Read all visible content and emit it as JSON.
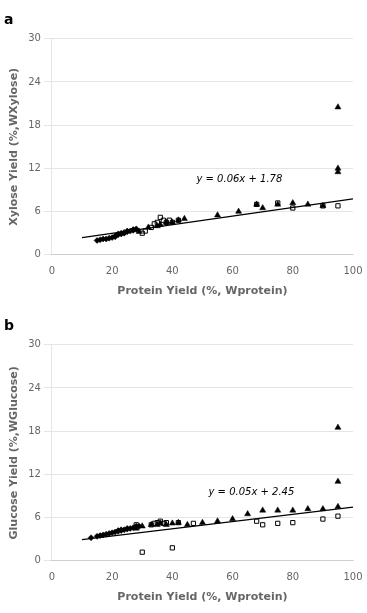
{
  "chart_data": [
    {
      "type": "scatter",
      "title": "a",
      "xlabel": "Protein Yield (%, Wprotein)",
      "ylabel": "Xylose Yield (%,WXylose)",
      "xlim": [
        0,
        100
      ],
      "ylim": [
        0,
        30
      ],
      "xticks": [
        0,
        20,
        40,
        60,
        80,
        100
      ],
      "yticks": [
        0,
        6,
        12,
        18,
        24,
        30
      ],
      "grid": "y",
      "annotations": [
        {
          "text": "y = 0.06x + 1.78",
          "x": 48,
          "y": 10.5
        }
      ],
      "series": [
        {
          "type": "line",
          "color": "#000000",
          "line_style": "solid",
          "x": [
            10,
            100
          ],
          "values": [
            2.38,
            7.78
          ]
        },
        {
          "type": "scatter",
          "marker": "diamond",
          "color": "#000000",
          "x": [
            15,
            16,
            17,
            18,
            19,
            20,
            21,
            21,
            22,
            22,
            23,
            23,
            24,
            24,
            25,
            25,
            26,
            27,
            27,
            28,
            28
          ],
          "values": [
            2.0,
            2.1,
            2.2,
            2.2,
            2.3,
            2.4,
            2.5,
            2.6,
            2.8,
            2.9,
            2.9,
            3.0,
            3.0,
            3.1,
            3.2,
            3.3,
            3.3,
            3.4,
            3.5,
            3.5,
            3.6
          ]
        },
        {
          "type": "scatter",
          "marker": "open_square",
          "color": "#000000",
          "x": [
            30,
            31,
            33,
            34,
            35,
            36,
            37,
            38,
            39,
            40,
            42,
            68,
            75,
            80,
            90,
            95
          ],
          "values": [
            3.0,
            3.3,
            3.8,
            4.3,
            4.5,
            5.2,
            4.8,
            4.5,
            4.8,
            4.5,
            4.8,
            7.0,
            7.2,
            6.5,
            6.8,
            6.8
          ]
        },
        {
          "type": "scatter",
          "marker": "triangle",
          "color": "#000000",
          "x": [
            29,
            32,
            35,
            36,
            38,
            40,
            42,
            44,
            55,
            62,
            68,
            70,
            75,
            80,
            85,
            90,
            95,
            95,
            95
          ],
          "values": [
            3.2,
            3.8,
            4.0,
            4.2,
            4.5,
            4.5,
            4.8,
            5.0,
            5.5,
            6.0,
            7.0,
            6.5,
            7.0,
            7.2,
            7.0,
            6.8,
            11.5,
            12.0,
            20.5
          ]
        }
      ]
    },
    {
      "type": "scatter",
      "title": "b",
      "xlabel": "Protein Yield (%, Wprotein)",
      "ylabel": "Glucose Yield (%,WGlucose)",
      "xlim": [
        0,
        100
      ],
      "ylim": [
        0,
        30
      ],
      "xticks": [
        0,
        20,
        40,
        60,
        80,
        100
      ],
      "yticks": [
        0,
        6,
        12,
        18,
        24,
        30
      ],
      "grid": "y",
      "annotations": [
        {
          "text": "y = 0.05x + 2.45",
          "x": 52,
          "y": 9.5
        }
      ],
      "series": [
        {
          "type": "line",
          "color": "#000000",
          "line_style": "solid",
          "x": [
            10,
            100
          ],
          "values": [
            2.95,
            7.45
          ]
        },
        {
          "type": "scatter",
          "marker": "diamond",
          "color": "#000000",
          "x": [
            13,
            15,
            16,
            17,
            18,
            19,
            20,
            21,
            22,
            22,
            23,
            23,
            24,
            25,
            25,
            26,
            27,
            28,
            28,
            29
          ],
          "values": [
            3.2,
            3.4,
            3.5,
            3.6,
            3.7,
            3.8,
            3.9,
            4.0,
            4.1,
            4.2,
            4.3,
            4.2,
            4.3,
            4.4,
            4.5,
            4.5,
            4.6,
            4.7,
            4.8,
            4.8
          ]
        },
        {
          "type": "scatter",
          "marker": "open_square",
          "color": "#000000",
          "x": [
            28,
            30,
            33,
            34,
            35,
            36,
            37,
            38,
            40,
            42,
            47,
            68,
            70,
            75,
            80,
            90,
            95
          ],
          "values": [
            5.0,
            1.2,
            5.0,
            5.2,
            5.3,
            5.5,
            5.2,
            5.3,
            1.8,
            5.3,
            5.2,
            5.5,
            5.0,
            5.2,
            5.3,
            5.8,
            6.2
          ]
        },
        {
          "type": "scatter",
          "marker": "triangle",
          "color": "#000000",
          "x": [
            28,
            30,
            33,
            35,
            36,
            38,
            40,
            42,
            45,
            50,
            55,
            60,
            65,
            70,
            75,
            80,
            85,
            90,
            95,
            95,
            95
          ],
          "values": [
            4.5,
            4.8,
            5.0,
            5.0,
            5.2,
            5.0,
            5.2,
            5.3,
            5.0,
            5.3,
            5.5,
            5.8,
            6.5,
            7.0,
            7.0,
            7.0,
            7.2,
            7.2,
            7.5,
            11.0,
            18.5
          ]
        }
      ]
    }
  ]
}
